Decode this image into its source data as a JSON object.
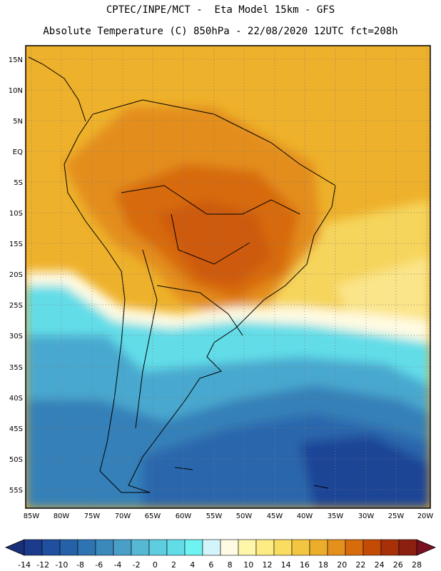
{
  "header": {
    "line1": "CPTEC/INPE/MCT -  Eta Model 15km - GFS",
    "line2": "Absolute Temperature (C) 850hPa - 22/08/2020 12UTC fct=208h"
  },
  "axes": {
    "lat_labels": [
      "15N",
      "10N",
      "5N",
      "EQ",
      "5S",
      "10S",
      "15S",
      "20S",
      "25S",
      "30S",
      "35S",
      "40S",
      "45S",
      "50S",
      "55S"
    ],
    "lon_labels": [
      "85W",
      "80W",
      "75W",
      "70W",
      "65W",
      "60W",
      "55W",
      "50W",
      "45W",
      "40W",
      "35W",
      "30W",
      "25W",
      "20W"
    ]
  },
  "colorbar": {
    "labels": [
      "-14",
      "-12",
      "-10",
      "-8",
      "-6",
      "-4",
      "-2",
      "0",
      "2",
      "4",
      "6",
      "8",
      "10",
      "12",
      "14",
      "16",
      "18",
      "20",
      "22",
      "24",
      "26",
      "28"
    ],
    "colors": [
      "#1d3b8c",
      "#1f4f9e",
      "#2561a8",
      "#2f74b2",
      "#3b88bd",
      "#4a9fc9",
      "#57b8d6",
      "#5fcde0",
      "#62dde8",
      "#6ff2f2",
      "#d4f4fb",
      "#fffbe3",
      "#fef6a8",
      "#fdec84",
      "#f8dd60",
      "#f2c641",
      "#ecae2a",
      "#e3901c",
      "#d86b0c",
      "#c44b06",
      "#a83008",
      "#8b1f10"
    ],
    "min_color": "#1a2f7a",
    "max_color": "#7a0f20"
  }
}
